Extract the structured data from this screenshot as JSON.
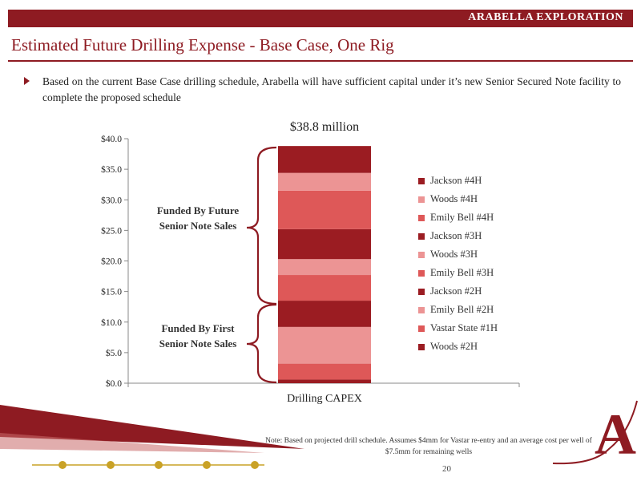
{
  "header": {
    "brand": "ARABELLA EXPLORATION",
    "title": "Estimated Future Drilling Expense  - Base Case, One Rig"
  },
  "bullet": {
    "text": "Based on the current Base Case drilling schedule, Arabella will have sufficient capital under it’s new Senior Secured Note facility to complete the proposed schedule"
  },
  "annotations": {
    "total": "$38.8 million",
    "future_funding": "Funded By Future Senior Note Sales",
    "first_funding": "Funded By First Senior Note Sales"
  },
  "chart_data": {
    "type": "bar",
    "stacked": true,
    "categories": [
      "Drilling CAPEX"
    ],
    "xlabel": "Drilling CAPEX",
    "ylim": [
      0,
      40
    ],
    "yticks": [
      "$0.0",
      "$5.0",
      "$10.0",
      "$15.0",
      "$20.0",
      "$25.0",
      "$30.0",
      "$35.0",
      "$40.0"
    ],
    "legend_position": "right",
    "series": [
      {
        "name": "Woods #2H",
        "values": [
          0.6
        ],
        "color": "#9b1c22"
      },
      {
        "name": "Vastar State #1H",
        "values": [
          2.6
        ],
        "color": "#de5858"
      },
      {
        "name": "Emily Bell #2H",
        "values": [
          6.0
        ],
        "color": "#ec9494"
      },
      {
        "name": "Jackson #2H",
        "values": [
          4.3
        ],
        "color": "#9b1c22"
      },
      {
        "name": "Emily Bell #3H",
        "values": [
          4.2
        ],
        "color": "#de5858"
      },
      {
        "name": "Woods #3H",
        "values": [
          2.6
        ],
        "color": "#ec9494"
      },
      {
        "name": "Jackson #3H",
        "values": [
          4.9
        ],
        "color": "#9b1c22"
      },
      {
        "name": "Emily Bell #4H",
        "values": [
          6.3
        ],
        "color": "#de5858"
      },
      {
        "name": "Woods #4H",
        "values": [
          2.9
        ],
        "color": "#ec9494"
      },
      {
        "name": "Jackson #4H",
        "values": [
          4.4
        ],
        "color": "#9b1c22"
      }
    ]
  },
  "footer": {
    "note": "Note: Based on projected drill schedule. Assumes $4mm for Vastar re-entry and an average cost per well of $7.5mm for remaining wells",
    "page": "20",
    "logo_letter": "A"
  },
  "colors": {
    "brand": "#8e1b22",
    "gold": "#c9a227"
  }
}
